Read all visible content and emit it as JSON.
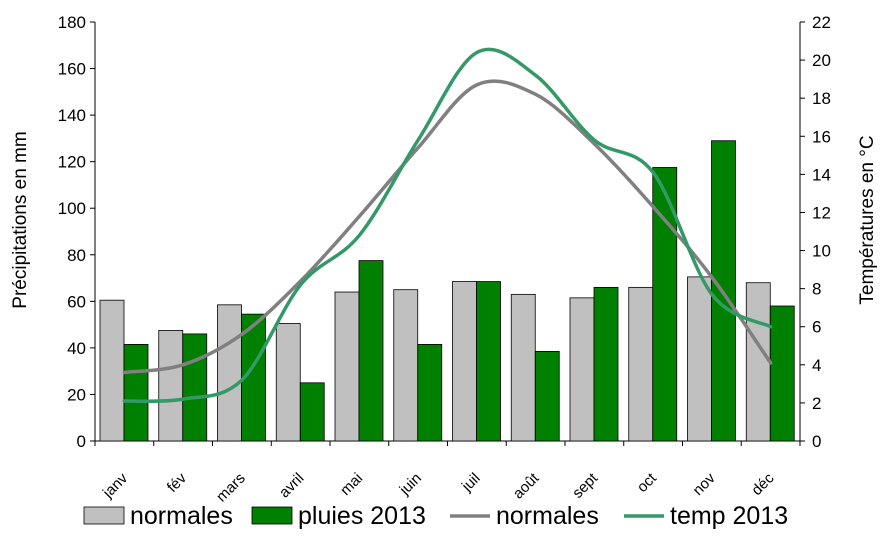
{
  "chart_data": {
    "type": "bar",
    "title": "",
    "categories": [
      "janv",
      "fév",
      "mars",
      "avril",
      "mai",
      "juin",
      "juil",
      "août",
      "sept",
      "oct",
      "nov",
      "déc"
    ],
    "ylabel": "Précipitations en mm",
    "ylabel_right": "Températures en °C",
    "ylim": [
      0,
      180
    ],
    "ylim_right": [
      0,
      22
    ],
    "yticks": [
      0,
      20,
      40,
      60,
      80,
      100,
      120,
      140,
      160,
      180
    ],
    "yticks_right": [
      0,
      2,
      4,
      6,
      8,
      10,
      12,
      14,
      16,
      18,
      20,
      22
    ],
    "grid": false,
    "legend_position": "bottom",
    "bar_series": [
      {
        "name": "normales",
        "color": "#c0c0c0",
        "values": [
          60.5,
          47.5,
          58.5,
          50.5,
          64,
          65,
          68.5,
          63,
          61.5,
          66,
          70.5,
          68
        ]
      },
      {
        "name": "pluies 2013",
        "color": "#008000",
        "values": [
          41.5,
          46,
          54.5,
          25,
          77.5,
          41.5,
          68.5,
          38.5,
          66,
          117.5,
          129,
          58
        ]
      }
    ],
    "line_series": [
      {
        "name": "normales",
        "color": "#808080",
        "axis": "right",
        "values": [
          3.6,
          4.0,
          5.6,
          8.4,
          11.8,
          15.4,
          18.7,
          18.2,
          15.6,
          12.3,
          8.6,
          4.1
        ]
      },
      {
        "name": "temp 2013",
        "color": "#339966",
        "axis": "right",
        "values": [
          2.1,
          2.2,
          3.2,
          8.2,
          10.8,
          15.8,
          20.4,
          19.2,
          15.8,
          14.1,
          7.7,
          6.0
        ]
      }
    ]
  }
}
